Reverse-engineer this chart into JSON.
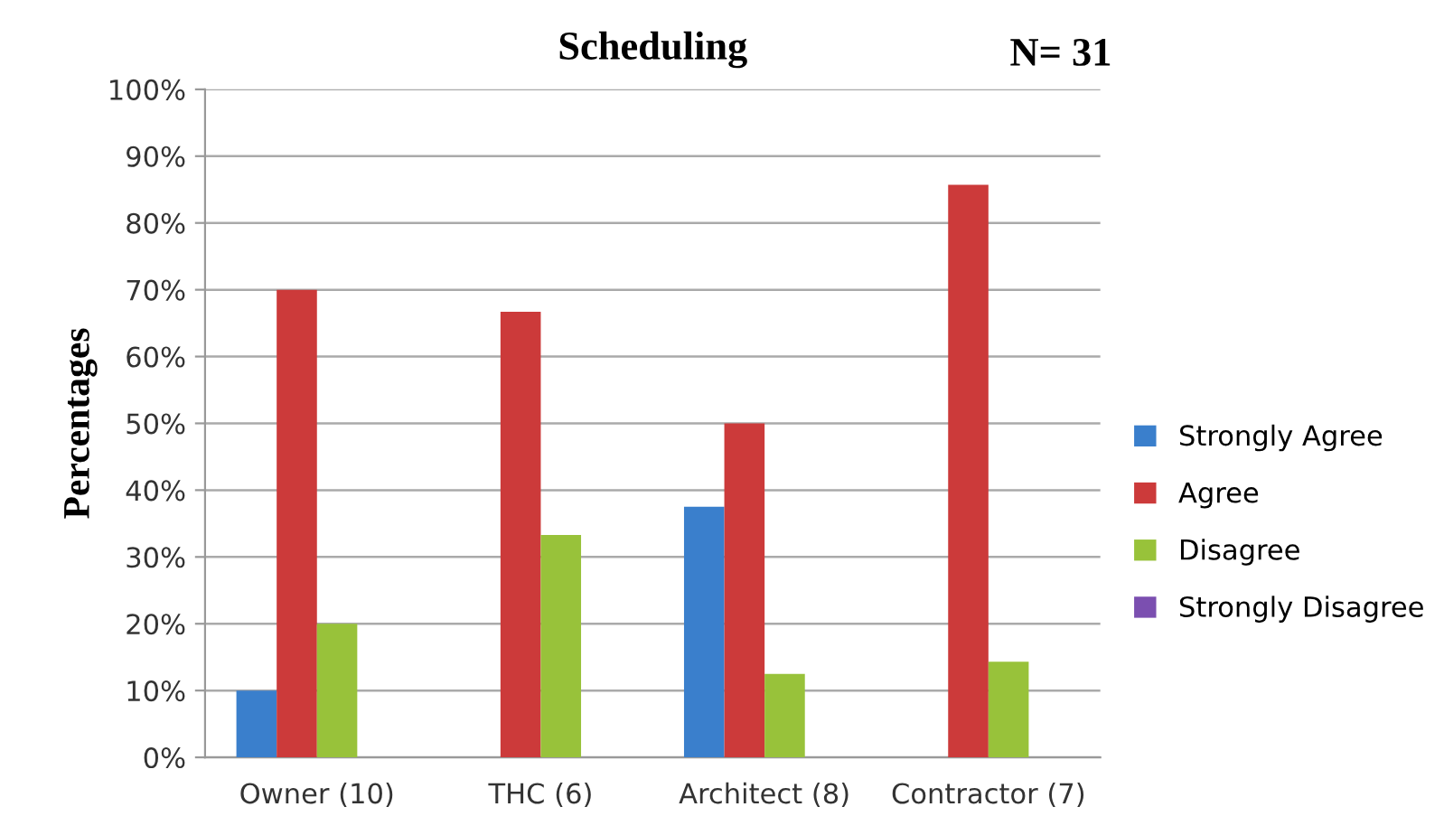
{
  "chart_data": {
    "type": "bar",
    "title": "Scheduling",
    "ylabel": "Percentages",
    "annotations": [
      "N= 31"
    ],
    "categories": [
      "Owner (10)",
      "THC (6)",
      "Architect (8)",
      "Contractor (7)"
    ],
    "series": [
      {
        "name": "Strongly Agree",
        "color": "#3a7fcc",
        "values": [
          10,
          0,
          37.5,
          0
        ]
      },
      {
        "name": "Agree",
        "color": "#cc3a3a",
        "values": [
          70,
          66.7,
          50,
          85.7
        ]
      },
      {
        "name": "Disagree",
        "color": "#98c23a",
        "values": [
          20,
          33.3,
          12.5,
          14.3
        ]
      },
      {
        "name": "Strongly Disagree",
        "color": "#7b4fb0",
        "values": [
          0,
          0,
          0,
          0
        ]
      }
    ],
    "ylim": [
      0,
      100
    ],
    "yticks": [
      {
        "value": 0,
        "label": "0%"
      },
      {
        "value": 10,
        "label": "10%"
      },
      {
        "value": 20,
        "label": "20%"
      },
      {
        "value": 30,
        "label": "30%"
      },
      {
        "value": 40,
        "label": "40%"
      },
      {
        "value": 50,
        "label": "50%"
      },
      {
        "value": 60,
        "label": "60%"
      },
      {
        "value": 70,
        "label": "70%"
      },
      {
        "value": 80,
        "label": "80%"
      },
      {
        "value": 90,
        "label": "90%"
      },
      {
        "value": 100,
        "label": "100%"
      }
    ],
    "grid": "y",
    "legend": "right"
  }
}
